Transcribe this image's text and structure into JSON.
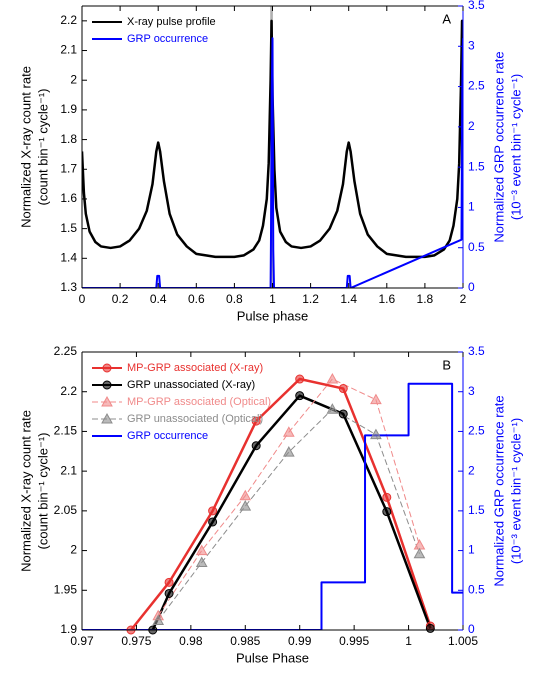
{
  "chart_data": [
    {
      "type": "line",
      "panel_label": "A",
      "xlabel": "Pulse phase",
      "ylabel": [
        "Normalized X-ray count rate",
        "(count bin⁻¹ cycle⁻¹)"
      ],
      "y2label": [
        "Normalized GRP occurrence rate",
        "(10⁻³ event bin⁻¹ cycle⁻¹)"
      ],
      "xlim": [
        0,
        2
      ],
      "ylim": [
        1.3,
        2.25
      ],
      "y2lim": [
        0,
        3.5
      ],
      "xticks": [
        0,
        0.2,
        0.4,
        0.6,
        0.8,
        1,
        1.2,
        1.4,
        1.6,
        1.8,
        2
      ],
      "yticks": [
        1.3,
        1.4,
        1.5,
        1.6,
        1.7,
        1.8,
        1.9,
        2,
        2.1,
        2.2
      ],
      "y2ticks": [
        0,
        0.5,
        1,
        1.5,
        2,
        2.5,
        3,
        3.5
      ],
      "legend": "upper left",
      "shaded_span": [
        0.988,
        1.002
      ],
      "shade_color": "#b0b0b0",
      "series": [
        {
          "name": "X-ray pulse profile",
          "color": "#000000",
          "x": [
            0,
            0.01,
            0.02,
            0.04,
            0.07,
            0.1,
            0.15,
            0.2,
            0.25,
            0.3,
            0.34,
            0.37,
            0.39,
            0.4,
            0.41,
            0.43,
            0.46,
            0.5,
            0.55,
            0.6,
            0.7,
            0.8,
            0.85,
            0.9,
            0.93,
            0.95,
            0.97,
            0.98,
            0.99,
            0.995,
            1.0,
            1.01,
            1.02,
            1.04,
            1.07,
            1.1,
            1.15,
            1.2,
            1.25,
            1.3,
            1.34,
            1.37,
            1.39,
            1.4,
            1.41,
            1.43,
            1.46,
            1.5,
            1.55,
            1.6,
            1.7,
            1.8,
            1.85,
            1.9,
            1.93,
            1.95,
            1.97,
            1.98,
            1.99,
            1.995,
            2.0
          ],
          "values": [
            1.76,
            1.62,
            1.55,
            1.49,
            1.455,
            1.44,
            1.435,
            1.44,
            1.46,
            1.5,
            1.56,
            1.65,
            1.76,
            1.79,
            1.76,
            1.66,
            1.55,
            1.48,
            1.44,
            1.415,
            1.405,
            1.405,
            1.41,
            1.43,
            1.46,
            1.51,
            1.6,
            1.72,
            2.0,
            2.2,
            1.95,
            1.7,
            1.57,
            1.49,
            1.455,
            1.44,
            1.435,
            1.44,
            1.46,
            1.5,
            1.56,
            1.65,
            1.76,
            1.79,
            1.76,
            1.66,
            1.55,
            1.48,
            1.44,
            1.415,
            1.405,
            1.405,
            1.41,
            1.43,
            1.46,
            1.51,
            1.6,
            1.72,
            2.0,
            2.2,
            2.18
          ]
        },
        {
          "name": "GRP occurrence",
          "color": "#0000ff",
          "axis": "y2",
          "x": [
            0,
            0.39,
            0.395,
            0.405,
            0.41,
            0.99,
            0.992,
            0.996,
            1.0,
            1.004,
            1.008,
            1.39,
            1.395,
            1.405,
            1.41,
            1.992,
            1.996,
            2.0
          ],
          "values": [
            0,
            0,
            0.15,
            0.15,
            0,
            0,
            0.6,
            2.45,
            3.1,
            0.47,
            0,
            0,
            0.15,
            0.15,
            0,
            0.6,
            2.45,
            3.1
          ]
        }
      ]
    },
    {
      "type": "line",
      "panel_label": "B",
      "xlabel": "Pulse Phase",
      "ylabel": [
        "Normalized X-ray count rate",
        "(count bin⁻¹ cycle⁻¹)"
      ],
      "y2label": [
        "Normalized GRP occurrence rate",
        "(10⁻³ event bin⁻¹ cycle⁻¹)"
      ],
      "xlim": [
        0.97,
        1.005
      ],
      "ylim": [
        1.9,
        2.25
      ],
      "y2lim": [
        0,
        3.5
      ],
      "xticks": [
        0.97,
        0.975,
        0.98,
        0.985,
        0.99,
        0.995,
        1,
        1.005
      ],
      "yticks": [
        1.9,
        1.95,
        2,
        2.05,
        2.1,
        2.15,
        2.2,
        2.25
      ],
      "y2ticks": [
        0,
        0.5,
        1,
        1.5,
        2,
        2.5,
        3,
        3.5
      ],
      "legend": "upper left",
      "series": [
        {
          "name": "MP-GRP associated (X-ray)",
          "color": "#e8312f",
          "marker": "circle",
          "x": [
            0.9745,
            0.978,
            0.982,
            0.986,
            0.99,
            0.994,
            0.998,
            1.002
          ],
          "values": [
            1.9,
            1.96,
            2.05,
            2.163,
            2.216,
            2.204,
            2.067,
            1.905
          ]
        },
        {
          "name": "GRP unassociated (X-ray)",
          "color": "#000000",
          "marker": "circle",
          "x": [
            0.9765,
            0.978,
            0.982,
            0.986,
            0.99,
            0.994,
            0.998,
            1.002
          ],
          "values": [
            1.9,
            1.946,
            2.036,
            2.132,
            2.195,
            2.172,
            2.049,
            1.902
          ]
        },
        {
          "name": "MP-GRP associated (Optical)",
          "color": "#f08a8a",
          "marker": "triangle",
          "dash": true,
          "x": [
            0.977,
            0.981,
            0.985,
            0.989,
            0.993,
            0.997,
            1.001
          ],
          "values": [
            1.918,
            2.0,
            2.069,
            2.149,
            2.216,
            2.19,
            2.007
          ]
        },
        {
          "name": "GRP unassociated (Optical)",
          "color": "#8c8c8c",
          "marker": "triangle",
          "dash": true,
          "x": [
            0.977,
            0.981,
            0.985,
            0.989,
            0.993,
            0.997,
            1.001
          ],
          "values": [
            1.912,
            1.985,
            2.056,
            2.124,
            2.178,
            2.146,
            1.996
          ]
        },
        {
          "name": "GRP occurrence",
          "color": "#0000ff",
          "axis": "y2",
          "x": [
            0.97,
            0.992,
            0.992,
            0.996,
            0.996,
            1.0,
            1.0,
            1.004,
            1.004,
            1.005
          ],
          "values": [
            0,
            0,
            0.6,
            0.6,
            2.45,
            2.45,
            3.1,
            3.1,
            0.47,
            0.47
          ]
        }
      ]
    }
  ]
}
